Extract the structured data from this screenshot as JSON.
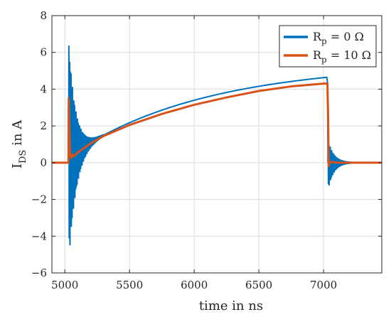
{
  "colors": {
    "series_blue": "#0072BD",
    "series_orange": "#D95319",
    "grid": "#dcdcdc",
    "axis": "#262626",
    "background": "#ffffff"
  },
  "chart_data": {
    "type": "line",
    "title": "",
    "xlabel": "time in ns",
    "ylabel_main": "I",
    "ylabel_sub": "DS",
    "ylabel_tail": " in A",
    "xlim": [
      4900,
      7450
    ],
    "ylim": [
      -6,
      8
    ],
    "xticks": [
      5000,
      5500,
      6000,
      6500,
      7000
    ],
    "yticks": [
      -6,
      -4,
      -2,
      0,
      2,
      4,
      6,
      8
    ],
    "xtick_labels": [
      "5000",
      "5500",
      "6000",
      "6500",
      "7000"
    ],
    "ytick_labels": [
      "−6",
      "−4",
      "−2",
      "0",
      "2",
      "4",
      "6",
      "8"
    ],
    "grid": true,
    "legend_position": "top-right",
    "series": [
      {
        "name": "R = 0 Ω",
        "label_main": "R",
        "label_sub": "p",
        "label_tail": " = 0 Ω",
        "color": "#0072BD",
        "style": "oscillating",
        "rise_start": 5030,
        "rise_amplitude_max": 6.6,
        "rise_amplitude_min": -5.4,
        "fall_start": 7040,
        "fall_amplitude_max": 1.25,
        "fall_amplitude_min": -1.5,
        "settle_end": 7300
      },
      {
        "name": "R = 10 Ω",
        "label_main": "R",
        "label_sub": "p",
        "label_tail": " = 10 Ω",
        "color": "#D95319",
        "style": "damped",
        "x": [
          4900,
          5028,
          5030,
          5040,
          5050,
          5060,
          5070,
          5100,
          5150,
          5200,
          5300,
          5500,
          5750,
          6000,
          6250,
          6500,
          6750,
          7000,
          7030,
          7035,
          7040,
          7045,
          7060,
          7100,
          7200,
          7450
        ],
        "y": [
          0,
          0,
          3.5,
          0.5,
          0.25,
          0.45,
          0.35,
          0.55,
          0.8,
          1.05,
          1.45,
          2.05,
          2.65,
          3.15,
          3.55,
          3.9,
          4.15,
          4.3,
          4.3,
          2.5,
          -0.2,
          0.0,
          0.05,
          0.0,
          0.0,
          0.0
        ]
      }
    ]
  }
}
